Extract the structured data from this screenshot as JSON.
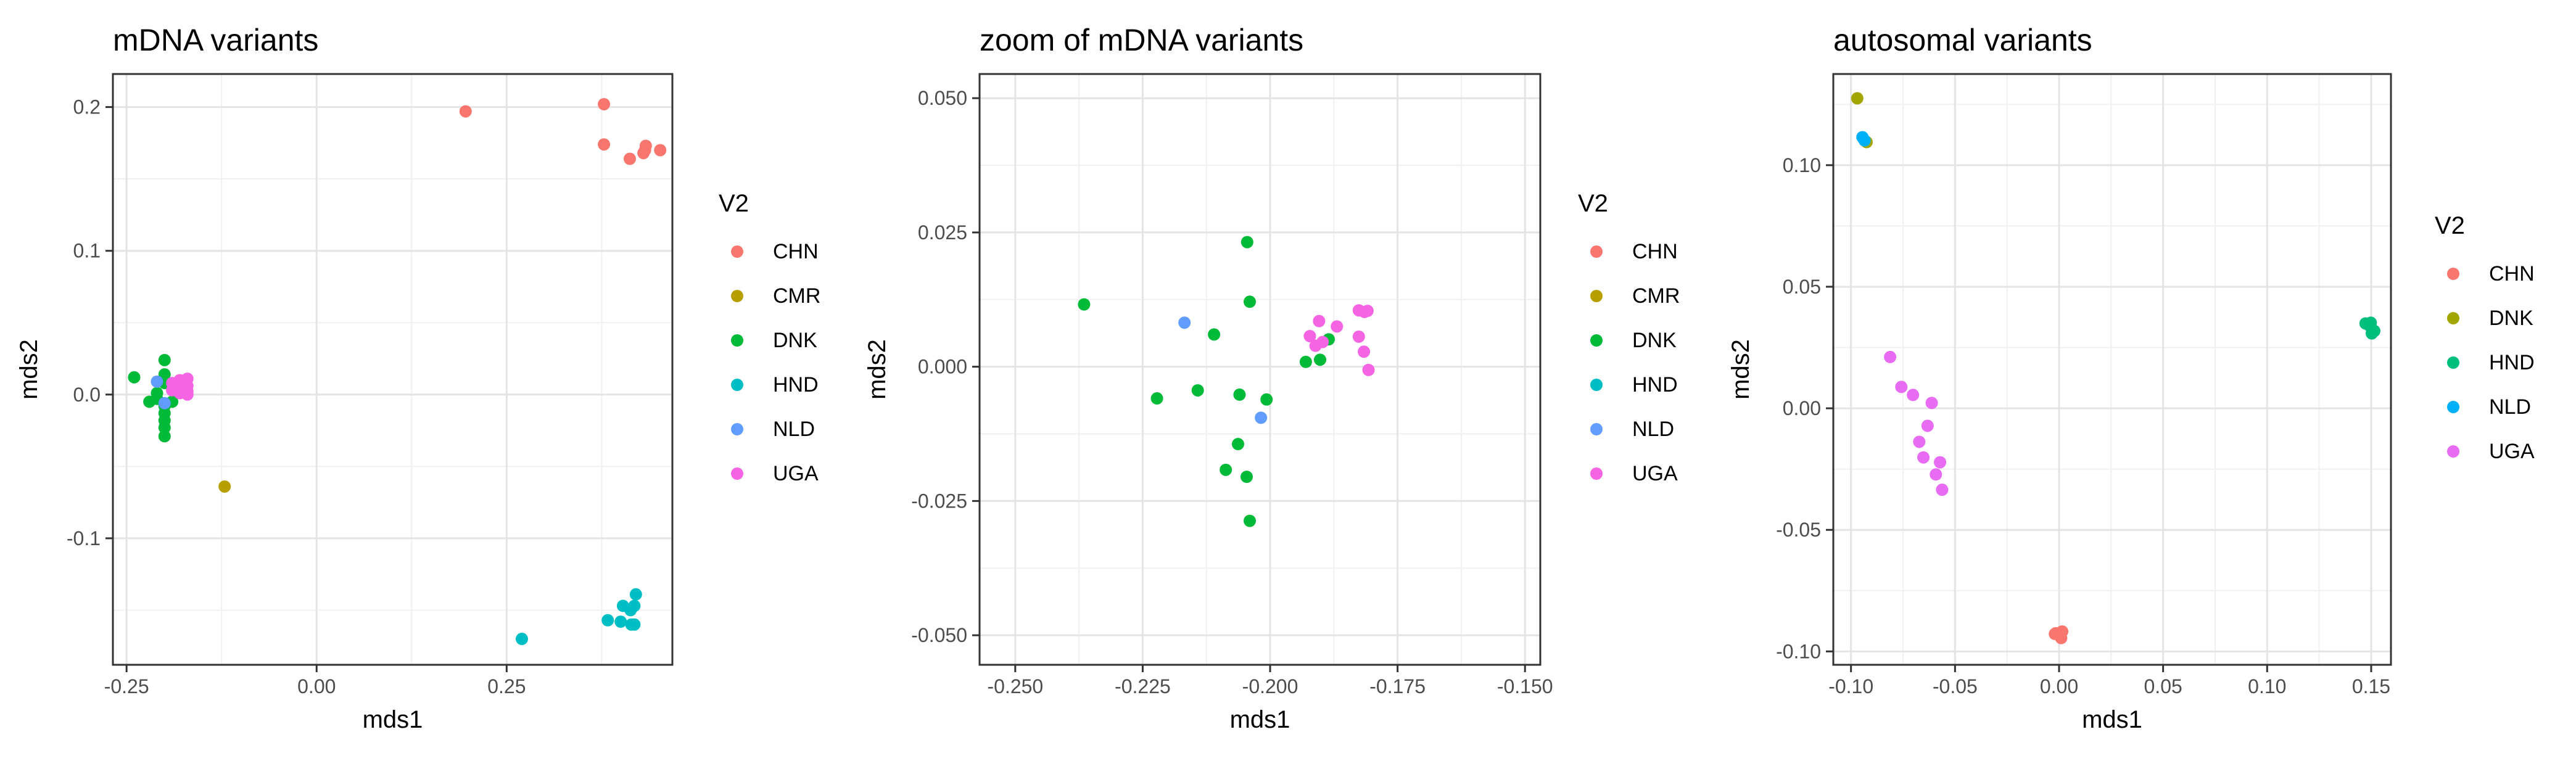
{
  "chart_data": [
    {
      "type": "scatter",
      "title": "mDNA variants",
      "xlabel": "mds1",
      "ylabel": "mds2",
      "xlim": [
        -0.268,
        0.468
      ],
      "ylim": [
        -0.188,
        0.223
      ],
      "xticks": [
        -0.25,
        0.0,
        0.25
      ],
      "xtick_labels": [
        "-0.25",
        "0.00",
        "0.25"
      ],
      "yticks": [
        -0.1,
        0.0,
        0.1,
        0.2
      ],
      "ytick_labels": [
        "-0.1",
        "0.0",
        "0.1",
        "0.2"
      ],
      "grid": true,
      "legend": {
        "title": "V2",
        "placement": "right",
        "entries": [
          "CHN",
          "CMR",
          "DNK",
          "HND",
          "NLD",
          "UGA"
        ]
      },
      "series": [
        {
          "name": "CHN",
          "color": "#F8766D",
          "x": [
            0.196,
            0.378,
            0.378,
            0.412,
            0.43,
            0.432,
            0.433,
            0.452
          ],
          "y": [
            0.197,
            0.202,
            0.174,
            0.164,
            0.168,
            0.17,
            0.173,
            0.17
          ]
        },
        {
          "name": "CMR",
          "color": "#B79F00",
          "x": [
            -0.121
          ],
          "y": [
            -0.064
          ]
        },
        {
          "name": "DNK",
          "color": "#00BA38",
          "x": [
            -0.24,
            -0.2,
            -0.2,
            -0.2,
            -0.21,
            -0.22,
            -0.2,
            -0.2,
            -0.2,
            -0.2,
            -0.2,
            -0.19,
            -0.21
          ],
          "y": [
            0.012,
            0.024,
            0.014,
            0.008,
            -0.003,
            -0.005,
            -0.008,
            -0.013,
            -0.018,
            -0.023,
            -0.029,
            -0.005,
            0.001
          ]
        },
        {
          "name": "HND",
          "color": "#00BFC4",
          "x": [
            0.27,
            0.383,
            0.4,
            0.414,
            0.413,
            0.403,
            0.418,
            0.42,
            0.418
          ],
          "y": [
            -0.17,
            -0.157,
            -0.158,
            -0.16,
            -0.15,
            -0.147,
            -0.147,
            -0.139,
            -0.16
          ]
        },
        {
          "name": "NLD",
          "color": "#619CFF",
          "x": [
            -0.21,
            -0.2
          ],
          "y": [
            0.009,
            -0.006
          ]
        },
        {
          "name": "UGA",
          "color": "#F564E3",
          "x": [
            -0.19,
            -0.18,
            -0.18,
            -0.17,
            -0.18,
            -0.17,
            -0.18,
            -0.19,
            -0.18,
            -0.17,
            -0.18,
            -0.17
          ],
          "y": [
            0.008,
            0.01,
            0.004,
            0.011,
            0.001,
            0.006,
            0.007,
            0.003,
            0.002,
            0.002,
            0.009,
            0.0
          ]
        }
      ]
    },
    {
      "type": "scatter",
      "title": "zoom of mDNA variants",
      "xlabel": "mds1",
      "ylabel": "mds2",
      "xlim": [
        -0.257,
        -0.147
      ],
      "ylim": [
        -0.0555,
        0.0545
      ],
      "xticks": [
        -0.25,
        -0.225,
        -0.2,
        -0.175,
        -0.15
      ],
      "xtick_labels": [
        "-0.250",
        "-0.225",
        "-0.200",
        "-0.175",
        "-0.150"
      ],
      "yticks": [
        -0.05,
        -0.025,
        0.0,
        0.025,
        0.05
      ],
      "ytick_labels": [
        "-0.050",
        "-0.025",
        "0.000",
        "0.025",
        "0.050"
      ],
      "grid": true,
      "legend": {
        "title": "V2",
        "placement": "right",
        "entries": [
          "CHN",
          "CMR",
          "DNK",
          "HND",
          "NLD",
          "UGA"
        ]
      },
      "series": [
        {
          "name": "CHN",
          "color": "#F8766D",
          "x": [],
          "y": []
        },
        {
          "name": "CMR",
          "color": "#B79F00",
          "x": [],
          "y": []
        },
        {
          "name": "DNK",
          "color": "#00BA38",
          "x": [
            -0.2365,
            -0.2045,
            -0.204,
            -0.211,
            -0.2222,
            -0.2142,
            -0.206,
            -0.2007,
            -0.2063,
            -0.2087,
            -0.2046,
            -0.204,
            -0.193,
            -0.1902,
            -0.1885
          ],
          "y": [
            0.0116,
            0.0232,
            0.0121,
            0.006,
            -0.0059,
            -0.0044,
            -0.0052,
            -0.0061,
            -0.0144,
            -0.0192,
            -0.0205,
            -0.0287,
            0.0009,
            0.0013,
            0.0051
          ]
        },
        {
          "name": "HND",
          "color": "#00BFC4",
          "x": [],
          "y": []
        },
        {
          "name": "NLD",
          "color": "#619CFF",
          "x": [
            -0.2168,
            -0.2018
          ],
          "y": [
            0.0082,
            -0.0095
          ]
        },
        {
          "name": "UGA",
          "color": "#F564E3",
          "x": [
            -0.1922,
            -0.1904,
            -0.1869,
            -0.1826,
            -0.1815,
            -0.1809,
            -0.1826,
            -0.1816,
            -0.1911,
            -0.1897,
            -0.1807
          ],
          "y": [
            0.0057,
            0.0085,
            0.0075,
            0.0105,
            0.0102,
            0.0104,
            0.0056,
            0.0028,
            0.0039,
            0.0046,
            -0.0006
          ]
        }
      ]
    },
    {
      "type": "scatter",
      "title": "autosomal variants",
      "xlabel": "mds1",
      "ylabel": "mds2",
      "xlim": [
        -0.1085,
        0.1595
      ],
      "ylim": [
        -0.1055,
        0.1375
      ],
      "xticks": [
        -0.1,
        -0.05,
        0.0,
        0.05,
        0.1,
        0.15
      ],
      "xtick_labels": [
        "-0.10",
        "-0.05",
        "0.00",
        "0.05",
        "0.10",
        "0.15"
      ],
      "yticks": [
        -0.1,
        -0.05,
        0.0,
        0.05,
        0.1
      ],
      "ytick_labels": [
        "-0.10",
        "-0.05",
        "0.00",
        "0.05",
        "0.10"
      ],
      "grid": true,
      "legend": {
        "title": "V2",
        "placement": "right",
        "entries": [
          "CHN",
          "DNK",
          "HND",
          "NLD",
          "UGA"
        ]
      },
      "series": [
        {
          "name": "CHN",
          "color": "#F8766D",
          "x": [
            -0.0015,
            0.0005,
            0.001,
            -0.002,
            0.0015
          ],
          "y": [
            -0.0925,
            -0.0935,
            -0.0945,
            -0.0928,
            -0.0918
          ]
        },
        {
          "name": "DNK",
          "color": "#A3A500",
          "x": [
            -0.097,
            -0.0925
          ],
          "y": [
            0.1275,
            0.1095
          ]
        },
        {
          "name": "HND",
          "color": "#00BF7D",
          "x": [
            0.1473,
            0.1493,
            0.1508,
            0.1503,
            0.1498,
            0.1515
          ],
          "y": [
            0.0349,
            0.0339,
            0.0322,
            0.0308,
            0.0352,
            0.0318
          ]
        },
        {
          "name": "NLD",
          "color": "#00B0F6",
          "x": [
            -0.0945,
            -0.0935
          ],
          "y": [
            0.1115,
            0.1102
          ]
        },
        {
          "name": "UGA",
          "color": "#E76BF3",
          "x": [
            -0.0812,
            -0.0758,
            -0.0702,
            -0.0612,
            -0.0632,
            -0.0672,
            -0.0652,
            -0.0572,
            -0.0592,
            -0.0562
          ],
          "y": [
            0.0211,
            0.0088,
            0.0055,
            0.0022,
            -0.0072,
            -0.0138,
            -0.0202,
            -0.0222,
            -0.0272,
            -0.0335
          ]
        }
      ]
    }
  ]
}
